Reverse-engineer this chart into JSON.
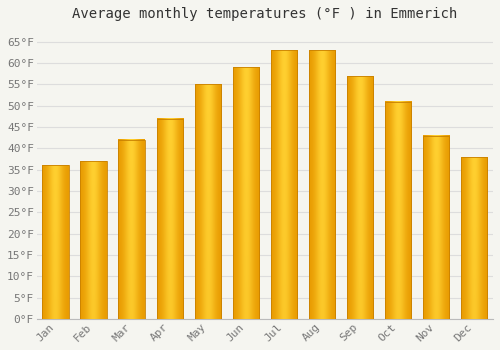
{
  "title": "Average monthly temperatures (°F ) in Emmerich",
  "months": [
    "Jan",
    "Feb",
    "Mar",
    "Apr",
    "May",
    "Jun",
    "Jul",
    "Aug",
    "Sep",
    "Oct",
    "Nov",
    "Dec"
  ],
  "values": [
    36.0,
    37.0,
    42.0,
    47.0,
    55.0,
    59.0,
    63.0,
    63.0,
    57.0,
    51.0,
    43.0,
    38.0
  ],
  "bar_color_center": "#FFCC44",
  "bar_color_edge": "#E89A00",
  "bar_color_mid": "#FFB020",
  "ylim": [
    0,
    68
  ],
  "yticks": [
    0,
    5,
    10,
    15,
    20,
    25,
    30,
    35,
    40,
    45,
    50,
    55,
    60,
    65
  ],
  "ytick_labels": [
    "0°F",
    "5°F",
    "10°F",
    "15°F",
    "20°F",
    "25°F",
    "30°F",
    "35°F",
    "40°F",
    "45°F",
    "50°F",
    "55°F",
    "60°F",
    "65°F"
  ],
  "bg_color": "#F5F5F0",
  "grid_color": "#DDDDDD",
  "title_fontsize": 10,
  "tick_fontsize": 8,
  "font_family": "monospace"
}
